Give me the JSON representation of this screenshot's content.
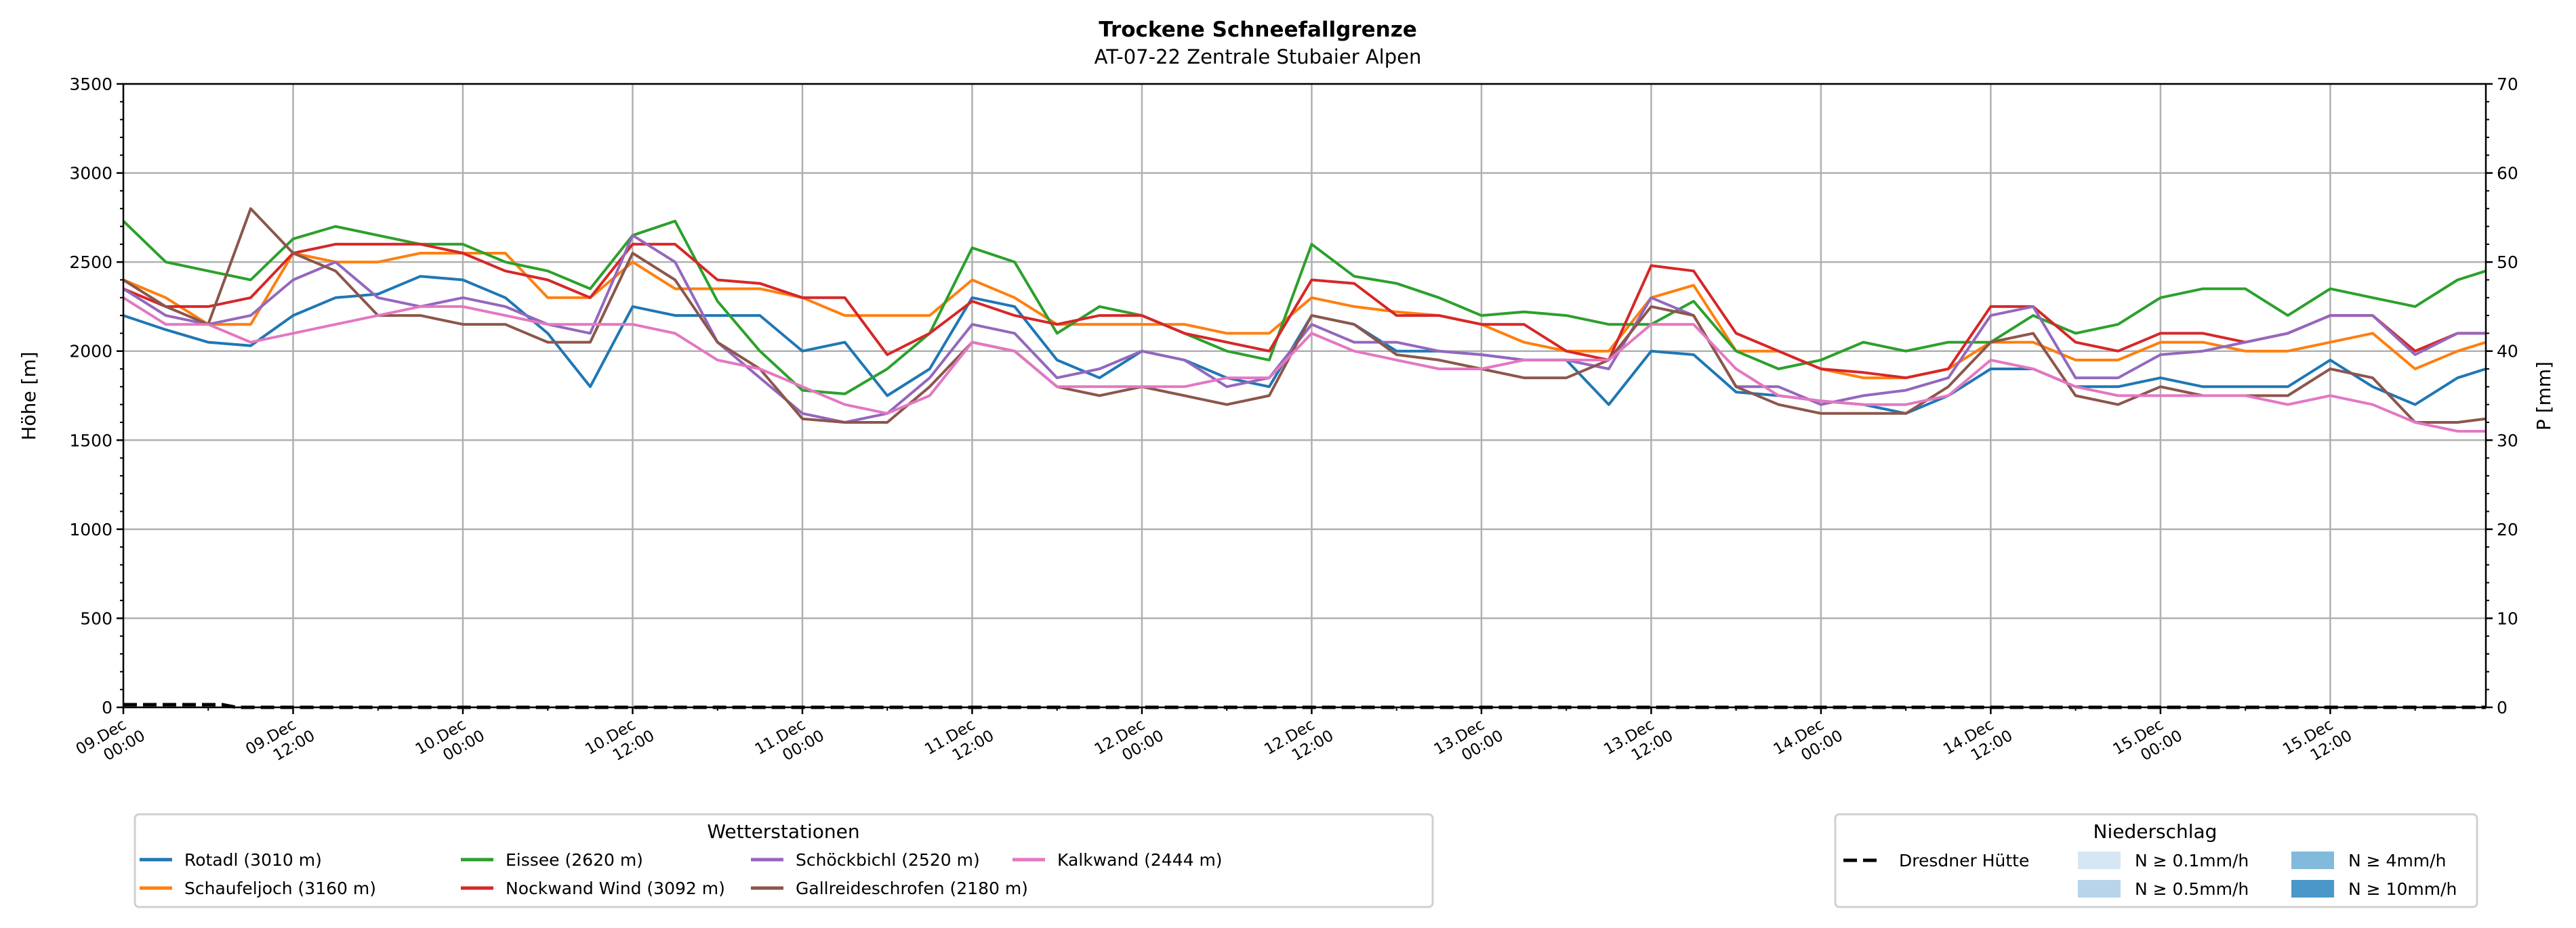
{
  "chart_data": {
    "type": "line",
    "title": "Trockene Schneefallgrenze",
    "subtitle": "AT-07-22 Zentrale Stubaier Alpen",
    "ylabel": "Höhe [m]",
    "ylabel_right": "P [mm]",
    "ylim": [
      0,
      3500
    ],
    "ylim_right": [
      0,
      70
    ],
    "yticks": [
      "0",
      "500",
      "1000",
      "1500",
      "2000",
      "2500",
      "3000",
      "3500"
    ],
    "yticks_right": [
      "0",
      "10",
      "20",
      "30",
      "40",
      "50",
      "60",
      "70"
    ],
    "xlim_hours": [
      0,
      167
    ],
    "xticks": [
      {
        "date": "09.Dec",
        "time": "00:00"
      },
      {
        "date": "09.Dec",
        "time": "12:00"
      },
      {
        "date": "10.Dec",
        "time": "00:00"
      },
      {
        "date": "10.Dec",
        "time": "12:00"
      },
      {
        "date": "11.Dec",
        "time": "00:00"
      },
      {
        "date": "11.Dec",
        "time": "12:00"
      },
      {
        "date": "12.Dec",
        "time": "00:00"
      },
      {
        "date": "12.Dec",
        "time": "12:00"
      },
      {
        "date": "13.Dec",
        "time": "00:00"
      },
      {
        "date": "13.Dec",
        "time": "12:00"
      },
      {
        "date": "14.Dec",
        "time": "00:00"
      },
      {
        "date": "14.Dec",
        "time": "12:00"
      },
      {
        "date": "15.Dec",
        "time": "00:00"
      },
      {
        "date": "15.Dec",
        "time": "12:00"
      }
    ],
    "grid": true,
    "x_hours": [
      0,
      3,
      6,
      9,
      12,
      15,
      18,
      21,
      24,
      27,
      30,
      33,
      36,
      39,
      42,
      45,
      48,
      51,
      54,
      57,
      60,
      63,
      66,
      69,
      72,
      75,
      78,
      81,
      84,
      87,
      90,
      93,
      96,
      99,
      102,
      105,
      108,
      111,
      114,
      117,
      120,
      123,
      126,
      129,
      132,
      135,
      138,
      141,
      144,
      147,
      150,
      153,
      156,
      159,
      162,
      165,
      167
    ],
    "series": [
      {
        "name": "Rotadl (3010 m)",
        "color": "#1f77b4",
        "values": [
          2200,
          2120,
          2050,
          2030,
          2200,
          2300,
          2320,
          2420,
          2400,
          2300,
          2100,
          1800,
          2250,
          2200,
          2200,
          2200,
          2000,
          2050,
          1750,
          1900,
          2300,
          2250,
          1950,
          1850,
          2000,
          1950,
          1850,
          1800,
          2200,
          2150,
          2000,
          2000,
          1980,
          1950,
          1950,
          1700,
          2000,
          1980,
          1770,
          1750,
          1720,
          1700,
          1650,
          1750,
          1900,
          1900,
          1800,
          1800,
          1850,
          1800,
          1800,
          1800,
          1950,
          1800,
          1700,
          1850,
          1900
        ]
      },
      {
        "name": "Schaufeljoch (3160 m)",
        "color": "#ff7f0e",
        "values": [
          2400,
          2300,
          2150,
          2150,
          2550,
          2500,
          2500,
          2550,
          2550,
          2550,
          2300,
          2300,
          2500,
          2350,
          2350,
          2350,
          2300,
          2200,
          2200,
          2200,
          2400,
          2300,
          2150,
          2150,
          2150,
          2150,
          2100,
          2100,
          2300,
          2250,
          2220,
          2200,
          2150,
          2050,
          2000,
          2000,
          2300,
          2370,
          2000,
          2000,
          1900,
          1850,
          1850,
          1900,
          2050,
          2050,
          1950,
          1950,
          2050,
          2050,
          2000,
          2000,
          2050,
          2100,
          1900,
          2000,
          2050
        ]
      },
      {
        "name": "Eissee (2620 m)",
        "color": "#2ca02c",
        "values": [
          2730,
          2500,
          2450,
          2400,
          2630,
          2700,
          2650,
          2600,
          2600,
          2500,
          2450,
          2350,
          2650,
          2730,
          2280,
          2000,
          1780,
          1760,
          1900,
          2100,
          2580,
          2500,
          2100,
          2250,
          2200,
          2100,
          2000,
          1950,
          2600,
          2420,
          2380,
          2300,
          2200,
          2220,
          2200,
          2150,
          2150,
          2280,
          2000,
          1900,
          1950,
          2050,
          2000,
          2050,
          2050,
          2200,
          2100,
          2150,
          2300,
          2350,
          2350,
          2200,
          2350,
          2300,
          2250,
          2400,
          2450
        ]
      },
      {
        "name": "Nockwand Wind (3092 m)",
        "color": "#d62728",
        "values": [
          2350,
          2250,
          2250,
          2300,
          2550,
          2600,
          2600,
          2600,
          2550,
          2450,
          2400,
          2300,
          2600,
          2600,
          2400,
          2380,
          2300,
          2300,
          1980,
          2100,
          2280,
          2200,
          2150,
          2200,
          2200,
          2100,
          2050,
          2000,
          2400,
          2380,
          2200,
          2200,
          2150,
          2150,
          2000,
          1950,
          2480,
          2450,
          2100,
          2000,
          1900,
          1880,
          1850,
          1900,
          2250,
          2250,
          2050,
          2000,
          2100,
          2100,
          2050,
          2100,
          2200,
          2200,
          2000,
          2100,
          2100
        ]
      },
      {
        "name": "Schöckbichl (2520 m)",
        "color": "#9467bd",
        "values": [
          2350,
          2200,
          2150,
          2200,
          2400,
          2500,
          2300,
          2250,
          2300,
          2250,
          2150,
          2100,
          2650,
          2500,
          2050,
          1850,
          1650,
          1600,
          1650,
          1850,
          2150,
          2100,
          1850,
          1900,
          2000,
          1950,
          1800,
          1850,
          2150,
          2050,
          2050,
          2000,
          1980,
          1950,
          1950,
          1900,
          2300,
          2200,
          1800,
          1800,
          1700,
          1750,
          1780,
          1850,
          2200,
          2250,
          1850,
          1850,
          1980,
          2000,
          2050,
          2100,
          2200,
          2200,
          1980,
          2100,
          2100
        ]
      },
      {
        "name": "Gallreideschrofen (2180 m)",
        "color": "#8c564b",
        "values": [
          2400,
          2250,
          2150,
          2800,
          2550,
          2450,
          2200,
          2200,
          2150,
          2150,
          2050,
          2050,
          2550,
          2400,
          2050,
          1900,
          1620,
          1600,
          1600,
          1800,
          2050,
          2000,
          1800,
          1750,
          1800,
          1750,
          1700,
          1750,
          2200,
          2150,
          1980,
          1950,
          1900,
          1850,
          1850,
          1950,
          2250,
          2200,
          1800,
          1700,
          1650,
          1650,
          1650,
          1800,
          2050,
          2100,
          1750,
          1700,
          1800,
          1750,
          1750,
          1750,
          1900,
          1850,
          1600,
          1600,
          1620
        ]
      },
      {
        "name": "Kalkwand (2444 m)",
        "color": "#e377c2",
        "values": [
          2300,
          2150,
          2150,
          2050,
          2100,
          2150,
          2200,
          2250,
          2250,
          2200,
          2150,
          2150,
          2150,
          2100,
          1950,
          1900,
          1800,
          1700,
          1650,
          1750,
          2050,
          2000,
          1800,
          1800,
          1800,
          1800,
          1850,
          1850,
          2100,
          2000,
          1950,
          1900,
          1900,
          1950,
          1950,
          1950,
          2150,
          2150,
          1900,
          1750,
          1720,
          1700,
          1700,
          1750,
          1950,
          1900,
          1800,
          1750,
          1750,
          1750,
          1750,
          1700,
          1750,
          1700,
          1600,
          1550,
          1550
        ]
      }
    ],
    "precipitation": {
      "name": "Dresdner Hütte",
      "color": "#000000",
      "x_hours": [
        0,
        7,
        8,
        167
      ],
      "values_mm": [
        0.3,
        0.3,
        0,
        0
      ]
    },
    "legend_stations": {
      "title": "Wetterstationen",
      "placement": "bottom-left"
    },
    "legend_precip": {
      "title": "Niederschlag",
      "placement": "bottom-right",
      "classes": [
        {
          "label": "N ≥ 0.1mm/h",
          "color": "#d6e6f4"
        },
        {
          "label": "N ≥ 0.5mm/h",
          "color": "#b7d4ea"
        },
        {
          "label": "N ≥ 4mm/h",
          "color": "#82badb"
        },
        {
          "label": "N ≥ 10mm/h",
          "color": "#4a98c9"
        }
      ]
    }
  }
}
